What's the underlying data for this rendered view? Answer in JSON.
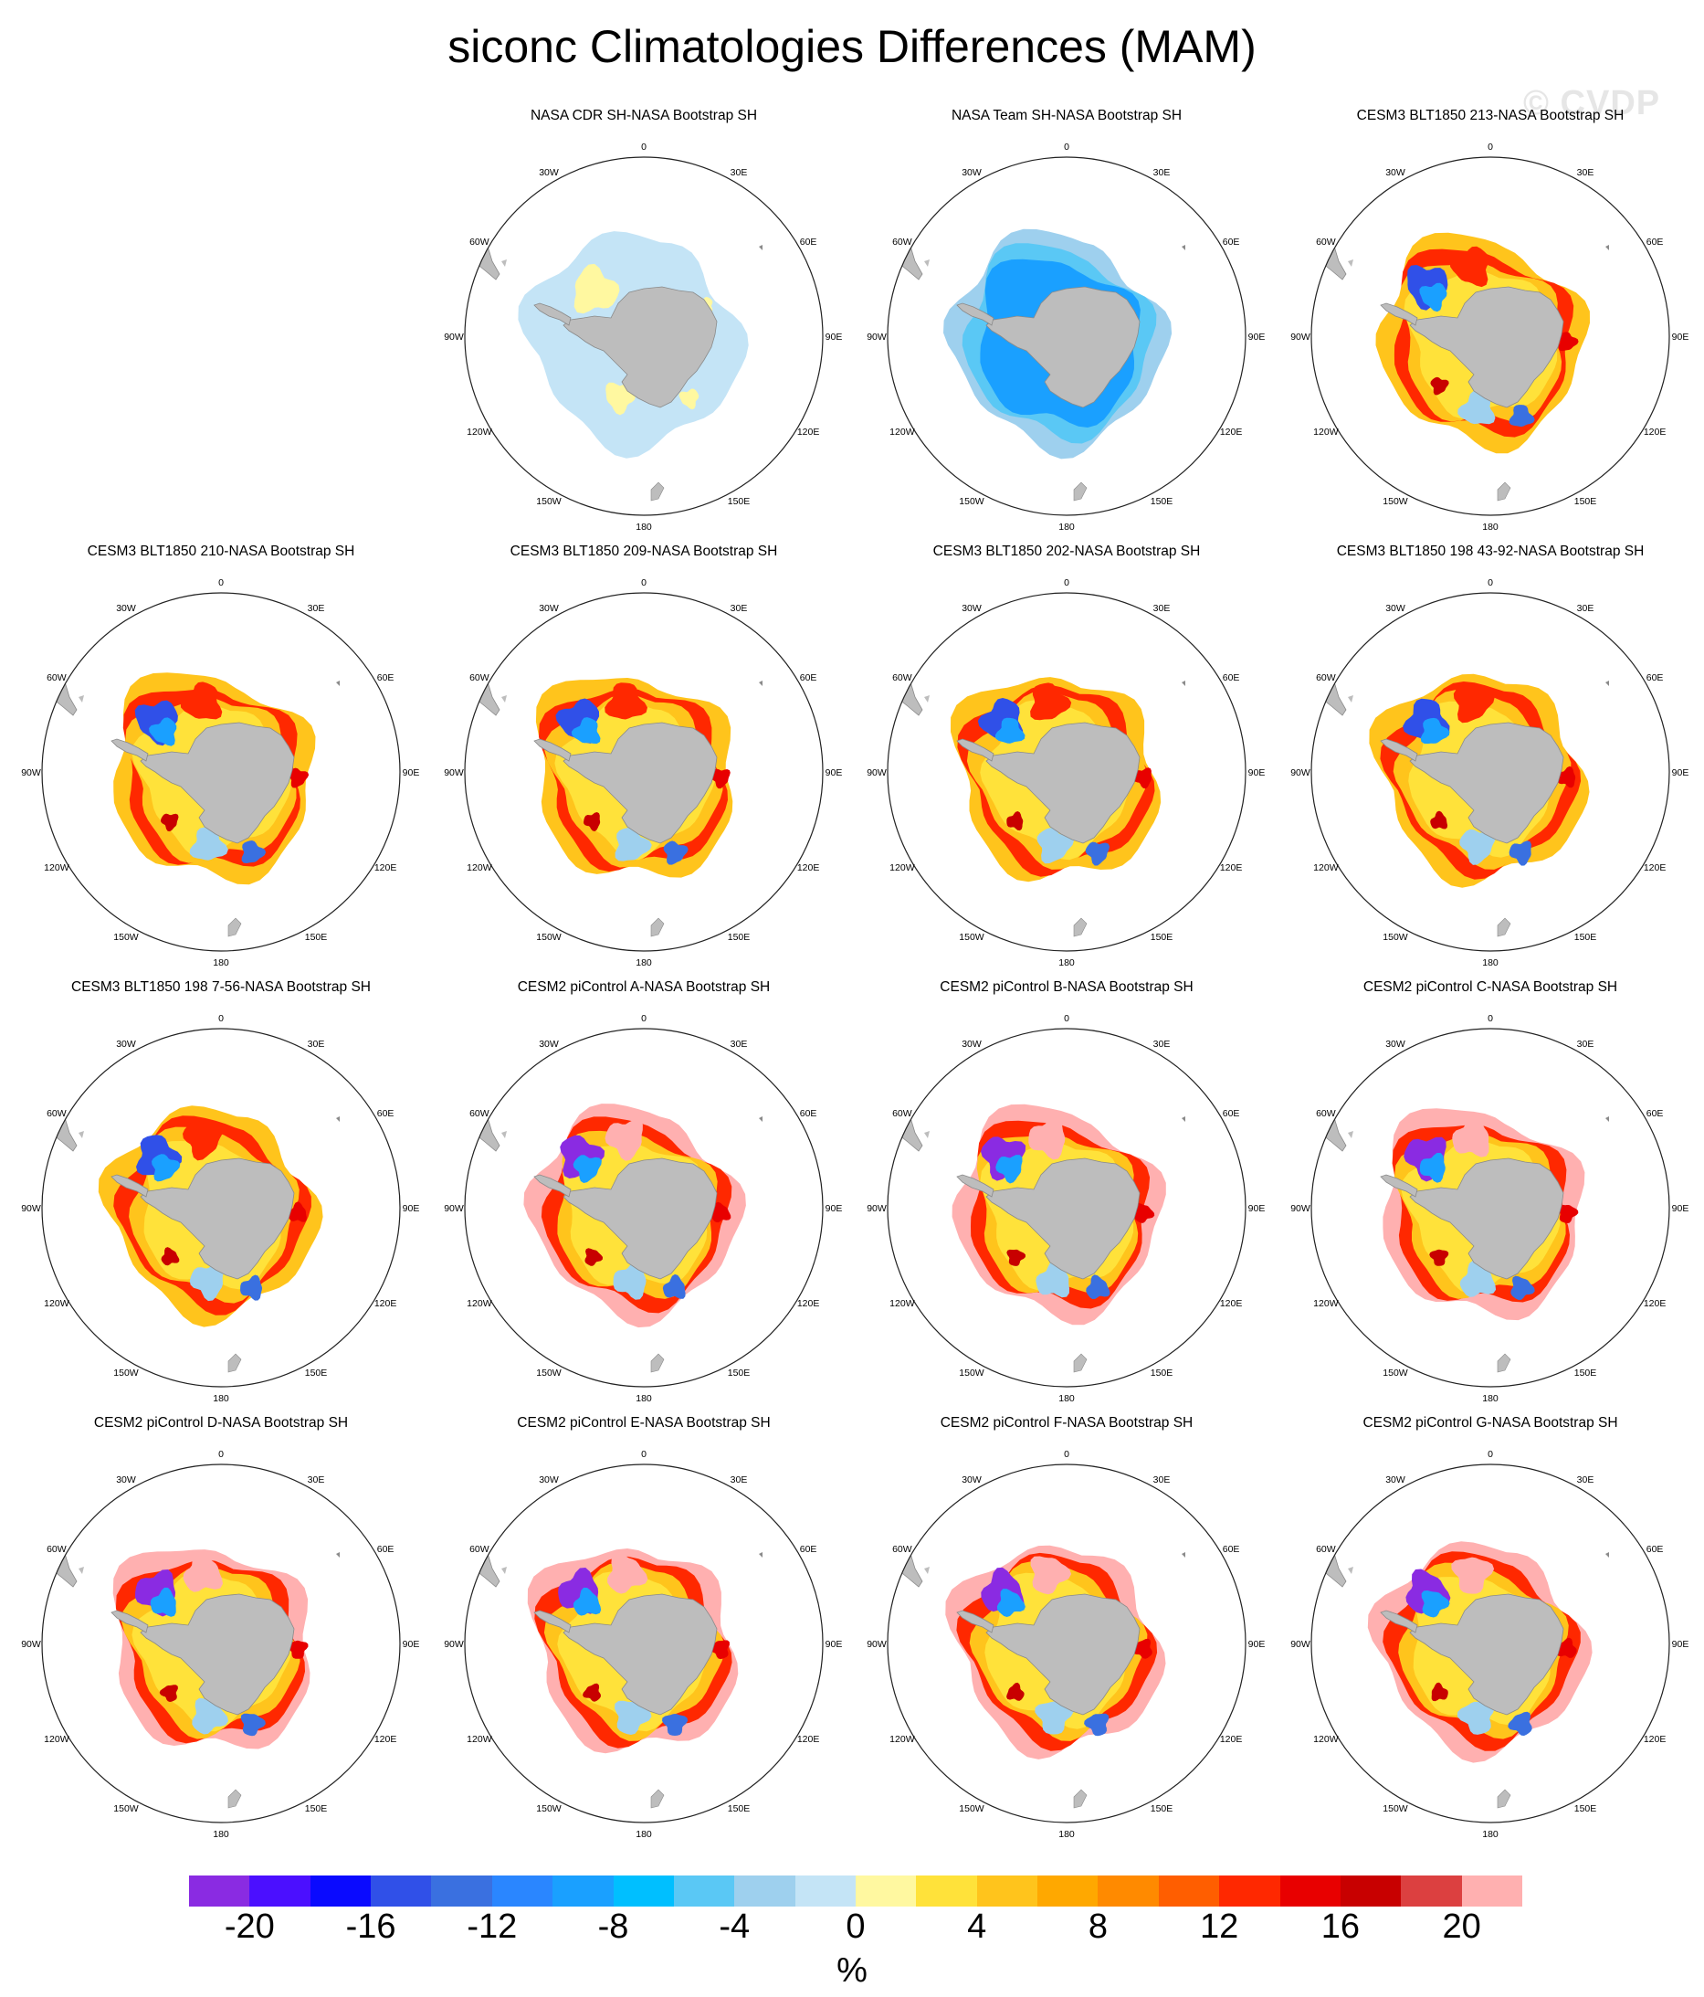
{
  "title": "siconc Climatologies Differences (MAM)",
  "watermark": "© CVDP",
  "panels": [
    {
      "title": "",
      "blank": true
    },
    {
      "title": "NASA CDR SH-NASA Bootstrap SH",
      "pattern": "cdr"
    },
    {
      "title": "NASA Team SH-NASA Bootstrap SH",
      "pattern": "team"
    },
    {
      "title": "CESM3 BLT1850 213-NASA Bootstrap SH",
      "pattern": "model"
    },
    {
      "title": "CESM3 BLT1850 210-NASA Bootstrap SH",
      "pattern": "model"
    },
    {
      "title": "CESM3 BLT1850 209-NASA Bootstrap SH",
      "pattern": "model"
    },
    {
      "title": "CESM3 BLT1850 202-NASA Bootstrap SH",
      "pattern": "model"
    },
    {
      "title": "CESM3 BLT1850 198 43-92-NASA Bootstrap SH",
      "pattern": "model"
    },
    {
      "title": "CESM3 BLT1850 198 7-56-NASA Bootstrap SH",
      "pattern": "model"
    },
    {
      "title": "CESM2 piControl A-NASA Bootstrap SH",
      "pattern": "cesm2"
    },
    {
      "title": "CESM2 piControl B-NASA Bootstrap SH",
      "pattern": "cesm2"
    },
    {
      "title": "CESM2 piControl C-NASA Bootstrap SH",
      "pattern": "cesm2"
    },
    {
      "title": "CESM2 piControl D-NASA Bootstrap SH",
      "pattern": "cesm2"
    },
    {
      "title": "CESM2 piControl E-NASA Bootstrap SH",
      "pattern": "cesm2"
    },
    {
      "title": "CESM2 piControl F-NASA Bootstrap SH",
      "pattern": "cesm2"
    },
    {
      "title": "CESM2 piControl G-NASA Bootstrap SH",
      "pattern": "cesm2"
    }
  ],
  "longitude_labels": [
    "0",
    "30E",
    "60E",
    "90E",
    "120E",
    "150E",
    "180",
    "150W",
    "120W",
    "90W",
    "60W",
    "30W"
  ],
  "colorbar": {
    "colors": [
      "#8a2be2",
      "#4b0fff",
      "#0a0aff",
      "#3050e8",
      "#3a70e0",
      "#2a86ff",
      "#1aa0ff",
      "#00bfff",
      "#5ac8f5",
      "#9ed0ee",
      "#c4e4f6",
      "#fff8a0",
      "#ffe23a",
      "#ffc41c",
      "#ffa800",
      "#ff8a00",
      "#ff5e00",
      "#ff2800",
      "#e80000",
      "#c80000",
      "#dc4040",
      "#ffb0b0"
    ],
    "tick_labels": [
      "-20",
      "-16",
      "-12",
      "-8",
      "-4",
      "0",
      "4",
      "8",
      "12",
      "16",
      "20"
    ],
    "units": "%"
  },
  "colors": {
    "land": "#bdbdbd",
    "coast": "#8a8a8a",
    "frame": "#222222"
  }
}
